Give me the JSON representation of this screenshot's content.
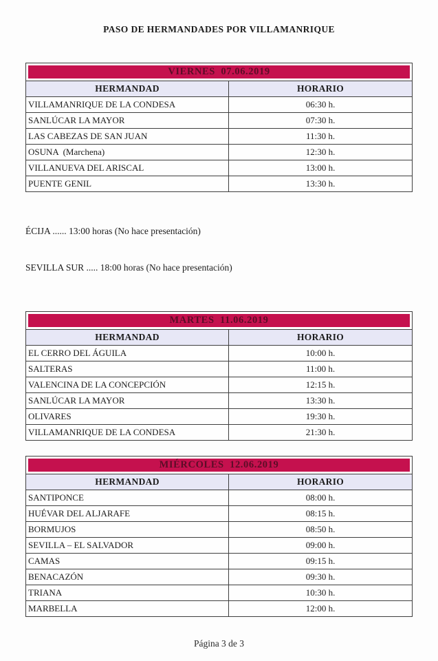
{
  "page": {
    "title": "PASO DE HERMANDADES POR VILLAMANRIQUE",
    "footer": "Página 3 de 3"
  },
  "colors": {
    "day_header_bg": "#c5114e",
    "day_header_text": "#5c0d27",
    "column_header_bg": "#e7e7f6",
    "border": "#3e3e3e"
  },
  "notes": [
    "ÉCIJA ...... 13:00 horas (No hace presentación)",
    "SEVILLA SUR ..... 18:00 horas (No hace presentación)"
  ],
  "tables": [
    {
      "day": "VIERNES  07.06.2019",
      "columns": [
        "HERMANDAD",
        "HORARIO"
      ],
      "rows": [
        {
          "hermandad": "VILLAMANRIQUE DE LA CONDESA",
          "horario": "06:30 h."
        },
        {
          "hermandad": "SANLÚCAR LA MAYOR",
          "horario": "07:30 h."
        },
        {
          "hermandad": "LAS CABEZAS DE SAN JUAN",
          "horario": "11:30 h."
        },
        {
          "hermandad": "OSUNA  (Marchena)",
          "horario": "12:30 h."
        },
        {
          "hermandad": "VILLANUEVA DEL ARISCAL",
          "horario": "13:00 h."
        },
        {
          "hermandad": "PUENTE GENIL",
          "horario": "13:30 h."
        }
      ]
    },
    {
      "day": "MARTES  11.06.2019",
      "columns": [
        "HERMANDAD",
        "HORARIO"
      ],
      "rows": [
        {
          "hermandad": "EL CERRO DEL ÁGUILA",
          "horario": "10:00 h."
        },
        {
          "hermandad": "SALTERAS",
          "horario": "11:00 h."
        },
        {
          "hermandad": "VALENCINA DE LA CONCEPCIÓN",
          "horario": "12:15 h."
        },
        {
          "hermandad": "SANLÚCAR LA MAYOR",
          "horario": "13:30 h."
        },
        {
          "hermandad": "OLIVARES",
          "horario": "19:30 h."
        },
        {
          "hermandad": "VILLAMANRIQUE DE LA CONDESA",
          "horario": "21:30 h."
        }
      ]
    },
    {
      "day": "MIÉRCOLES  12.06.2019",
      "columns": [
        "HERMANDAD",
        "HORARIO"
      ],
      "rows": [
        {
          "hermandad": "SANTIPONCE",
          "horario": "08:00 h."
        },
        {
          "hermandad": "HUÉVAR DEL ALJARAFE",
          "horario": "08:15 h."
        },
        {
          "hermandad": "BORMUJOS",
          "horario": "08:50 h."
        },
        {
          "hermandad": "SEVILLA – EL SALVADOR",
          "horario": "09:00 h."
        },
        {
          "hermandad": "CAMAS",
          "horario": "09:15 h."
        },
        {
          "hermandad": "BENACAZÓN",
          "horario": "09:30 h."
        },
        {
          "hermandad": "TRIANA",
          "horario": "10:30 h."
        },
        {
          "hermandad": "MARBELLA",
          "horario": "12:00 h."
        }
      ]
    }
  ]
}
